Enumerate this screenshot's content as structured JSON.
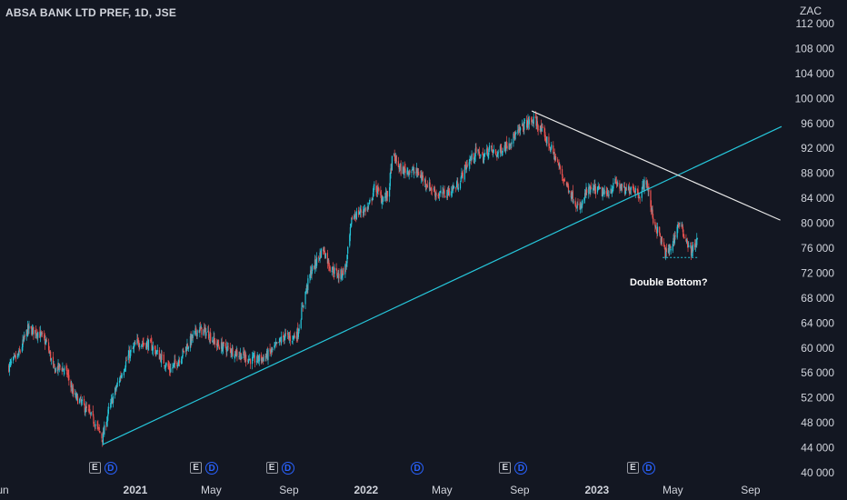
{
  "header": {
    "title": "ABSA BANK LTD PREF, 1D, JSE",
    "currency": "ZAC"
  },
  "annotation": {
    "text": "Double Bottom?"
  },
  "events": [
    {
      "date": "2020-11-13",
      "badges": [
        "E",
        "D"
      ]
    },
    {
      "date": "2021-04-22",
      "badges": [
        "E",
        "D"
      ]
    },
    {
      "date": "2021-08-20",
      "badges": [
        "E",
        "D"
      ]
    },
    {
      "date": "2022-03-25",
      "badges": [
        "D"
      ]
    },
    {
      "date": "2022-08-24",
      "badges": [
        "E",
        "D"
      ]
    },
    {
      "date": "2023-03-14",
      "badges": [
        "E",
        "D"
      ]
    }
  ],
  "colors": {
    "background": "#131722",
    "up_candle": "#26c6da",
    "down_candle": "#ef5350",
    "trendline_support": "#26c6da",
    "trendline_resistance": "#e8e8e8",
    "text": "#d1d4dc",
    "dividend_badge": "#2962ff"
  },
  "chart_data": {
    "type": "candlestick",
    "title": "ABSA BANK LTD PREF, 1D, JSE",
    "currency": "ZAC",
    "y_axis": {
      "ylim": [
        40000,
        112000
      ],
      "ticks": [
        112000,
        108000,
        104000,
        100000,
        96000,
        92000,
        88000,
        84000,
        80000,
        76000,
        72000,
        68000,
        64000,
        60000,
        56000,
        52000,
        48000,
        44000,
        40000
      ]
    },
    "x_axis": {
      "range": [
        "2020-06-01",
        "2023-10-20"
      ],
      "ticks": [
        {
          "label": "Jun",
          "date": "2020-06-01"
        },
        {
          "label": "2021",
          "date": "2021-01-01"
        },
        {
          "label": "May",
          "date": "2021-05-01"
        },
        {
          "label": "Sep",
          "date": "2021-09-01"
        },
        {
          "label": "2022",
          "date": "2022-01-01"
        },
        {
          "label": "May",
          "date": "2022-05-01"
        },
        {
          "label": "Sep",
          "date": "2022-09-01"
        },
        {
          "label": "2023",
          "date": "2023-01-01"
        },
        {
          "label": "May",
          "date": "2023-05-01"
        },
        {
          "label": "Sep",
          "date": "2023-09-01"
        }
      ]
    },
    "grid": false,
    "price_path": [
      [
        "2020-06-15",
        57000
      ],
      [
        "2020-07-01",
        59000
      ],
      [
        "2020-07-15",
        63000
      ],
      [
        "2020-08-01",
        62500
      ],
      [
        "2020-08-15",
        60500
      ],
      [
        "2020-08-25",
        56500
      ],
      [
        "2020-09-05",
        57000
      ],
      [
        "2020-09-15",
        56000
      ],
      [
        "2020-09-25",
        52500
      ],
      [
        "2020-10-05",
        51500
      ],
      [
        "2020-10-20",
        49500
      ],
      [
        "2020-11-01",
        47500
      ],
      [
        "2020-11-10",
        45500
      ],
      [
        "2020-11-20",
        50000
      ],
      [
        "2020-12-05",
        54500
      ],
      [
        "2020-12-20",
        58500
      ],
      [
        "2021-01-05",
        61000
      ],
      [
        "2021-01-25",
        60500
      ],
      [
        "2021-02-10",
        58500
      ],
      [
        "2021-02-25",
        56500
      ],
      [
        "2021-03-10",
        58000
      ],
      [
        "2021-03-25",
        60500
      ],
      [
        "2021-04-10",
        63000
      ],
      [
        "2021-04-25",
        62500
      ],
      [
        "2021-05-10",
        60500
      ],
      [
        "2021-05-25",
        60000
      ],
      [
        "2021-06-15",
        59000
      ],
      [
        "2021-07-05",
        58000
      ],
      [
        "2021-07-25",
        58500
      ],
      [
        "2021-08-10",
        60000
      ],
      [
        "2021-08-25",
        62000
      ],
      [
        "2021-09-05",
        61500
      ],
      [
        "2021-09-15",
        62500
      ],
      [
        "2021-09-25",
        68000
      ],
      [
        "2021-10-05",
        72000
      ],
      [
        "2021-10-15",
        74000
      ],
      [
        "2021-10-25",
        76000
      ],
      [
        "2021-11-05",
        73000
      ],
      [
        "2021-11-20",
        71500
      ],
      [
        "2021-11-30",
        73000
      ],
      [
        "2021-12-10",
        81000
      ],
      [
        "2021-12-25",
        82000
      ],
      [
        "2022-01-05",
        82500
      ],
      [
        "2022-01-15",
        86000
      ],
      [
        "2022-01-25",
        84000
      ],
      [
        "2022-02-05",
        84500
      ],
      [
        "2022-02-12",
        91000
      ],
      [
        "2022-02-25",
        88500
      ],
      [
        "2022-03-10",
        88500
      ],
      [
        "2022-03-25",
        88000
      ],
      [
        "2022-04-10",
        86000
      ],
      [
        "2022-04-25",
        84500
      ],
      [
        "2022-05-10",
        85000
      ],
      [
        "2022-05-25",
        86000
      ],
      [
        "2022-06-10",
        89500
      ],
      [
        "2022-06-25",
        91500
      ],
      [
        "2022-07-05",
        90500
      ],
      [
        "2022-07-15",
        92000
      ],
      [
        "2022-07-25",
        91000
      ],
      [
        "2022-08-10",
        92500
      ],
      [
        "2022-08-25",
        94000
      ],
      [
        "2022-09-10",
        96000
      ],
      [
        "2022-09-25",
        96500
      ],
      [
        "2022-10-10",
        94000
      ],
      [
        "2022-10-25",
        91000
      ],
      [
        "2022-11-10",
        87000
      ],
      [
        "2022-11-25",
        84000
      ],
      [
        "2022-12-05",
        82000
      ],
      [
        "2022-12-15",
        85000
      ],
      [
        "2022-12-31",
        85500
      ],
      [
        "2023-01-15",
        84500
      ],
      [
        "2023-01-31",
        86500
      ],
      [
        "2023-02-15",
        85000
      ],
      [
        "2023-02-25",
        86000
      ],
      [
        "2023-03-10",
        84500
      ],
      [
        "2023-03-20",
        87000
      ],
      [
        "2023-03-31",
        80500
      ],
      [
        "2023-04-10",
        78000
      ],
      [
        "2023-04-20",
        75000
      ],
      [
        "2023-04-30",
        76500
      ],
      [
        "2023-05-10",
        80000
      ],
      [
        "2023-05-20",
        78000
      ],
      [
        "2023-05-30",
        75500
      ],
      [
        "2023-06-10",
        77500
      ]
    ],
    "trendlines": [
      {
        "name": "support",
        "from": [
          "2020-11-10",
          44500
        ],
        "to": [
          "2023-10-20",
          95500
        ]
      },
      {
        "name": "resistance",
        "from": [
          "2022-09-20",
          98000
        ],
        "to": [
          "2023-10-18",
          80500
        ]
      }
    ],
    "double_bottom_level": {
      "value": 74500,
      "from": "2023-04-15",
      "to": "2023-06-10"
    }
  }
}
